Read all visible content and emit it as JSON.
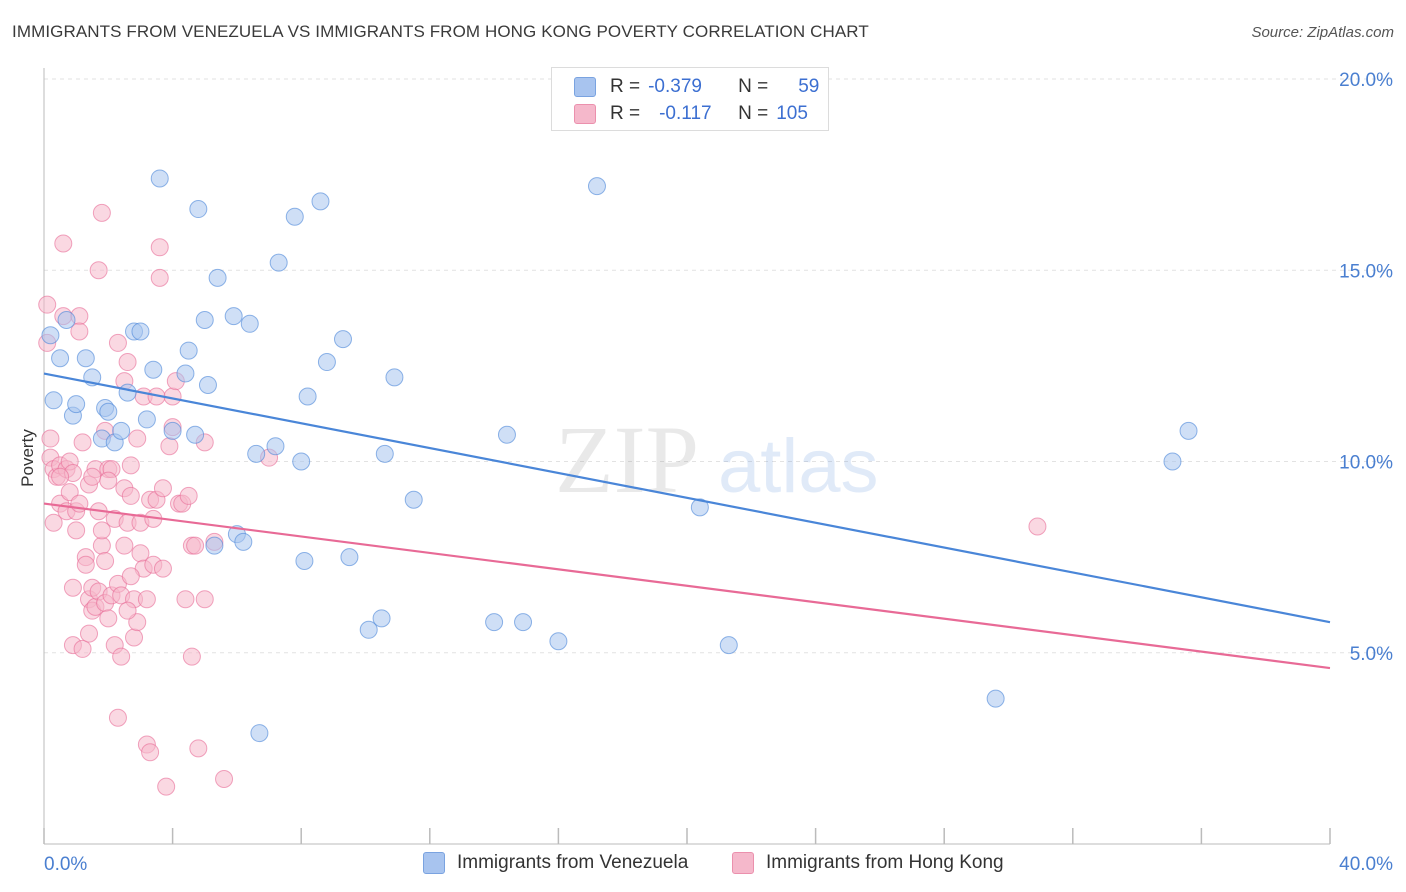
{
  "title": "IMMIGRANTS FROM VENEZUELA VS IMMIGRANTS FROM HONG KONG POVERTY CORRELATION CHART",
  "source": "Source: ZipAtlas.com",
  "watermark": {
    "zip": "ZIP",
    "atlas": "atlas"
  },
  "legend": {
    "rows": [
      {
        "r_label": "R =",
        "r_value": "-0.379",
        "n_label": "N =",
        "n_value": "59",
        "color": "#a8c4ef"
      },
      {
        "r_label": "R =",
        "r_value": "-0.117",
        "n_label": "N =",
        "n_value": "105",
        "color": "#f5b8cb"
      }
    ]
  },
  "bottom_legend": {
    "items": [
      {
        "label": "Immigrants from Venezuela",
        "color": "#a8c4ef"
      },
      {
        "label": "Immigrants from Hong Kong",
        "color": "#f5b8cb"
      }
    ]
  },
  "chart_data": {
    "type": "scatter",
    "title": "IMMIGRANTS FROM VENEZUELA VS IMMIGRANTS FROM HONG KONG POVERTY CORRELATION CHART",
    "xlabel": "",
    "ylabel": "Poverty",
    "xlim": [
      0,
      40
    ],
    "ylim": [
      0,
      20
    ],
    "x_tick_labels": [
      "0.0%",
      "40.0%"
    ],
    "y_ticks": [
      5,
      10,
      15,
      20
    ],
    "y_tick_labels": [
      "5.0%",
      "10.0%",
      "15.0%",
      "20.0%"
    ],
    "grid": true,
    "legend_position": "top-center",
    "series": [
      {
        "name": "Immigrants from Venezuela",
        "color": "#4a86d8",
        "fill": "#a8c4ef",
        "trend": {
          "x": [
            0,
            40
          ],
          "y": [
            12.3,
            5.8
          ]
        },
        "points": [
          [
            0.2,
            13.3
          ],
          [
            0.3,
            11.6
          ],
          [
            0.5,
            12.7
          ],
          [
            0.7,
            13.7
          ],
          [
            0.9,
            11.2
          ],
          [
            1.0,
            11.5
          ],
          [
            1.3,
            12.7
          ],
          [
            1.5,
            12.2
          ],
          [
            1.8,
            10.6
          ],
          [
            1.9,
            11.4
          ],
          [
            2.0,
            11.3
          ],
          [
            2.2,
            10.5
          ],
          [
            2.4,
            10.8
          ],
          [
            2.6,
            11.8
          ],
          [
            2.8,
            13.4
          ],
          [
            3.0,
            13.4
          ],
          [
            3.2,
            11.1
          ],
          [
            3.4,
            12.4
          ],
          [
            3.6,
            17.4
          ],
          [
            4.0,
            10.8
          ],
          [
            4.4,
            12.3
          ],
          [
            4.5,
            12.9
          ],
          [
            4.7,
            10.7
          ],
          [
            4.8,
            16.6
          ],
          [
            5.0,
            13.7
          ],
          [
            5.1,
            12.0
          ],
          [
            5.3,
            7.8
          ],
          [
            5.4,
            14.8
          ],
          [
            5.9,
            13.8
          ],
          [
            6.0,
            8.1
          ],
          [
            6.2,
            7.9
          ],
          [
            6.4,
            13.6
          ],
          [
            6.6,
            10.2
          ],
          [
            6.7,
            2.9
          ],
          [
            7.2,
            10.4
          ],
          [
            7.3,
            15.2
          ],
          [
            7.8,
            16.4
          ],
          [
            8.0,
            10.0
          ],
          [
            8.1,
            7.4
          ],
          [
            8.2,
            11.7
          ],
          [
            8.6,
            16.8
          ],
          [
            8.8,
            12.6
          ],
          [
            9.3,
            13.2
          ],
          [
            9.5,
            7.5
          ],
          [
            10.1,
            5.6
          ],
          [
            10.5,
            5.9
          ],
          [
            10.6,
            10.2
          ],
          [
            10.9,
            12.2
          ],
          [
            11.5,
            9.0
          ],
          [
            14.0,
            5.8
          ],
          [
            14.4,
            10.7
          ],
          [
            14.9,
            5.8
          ],
          [
            16.0,
            5.3
          ],
          [
            17.2,
            17.2
          ],
          [
            20.4,
            8.8
          ],
          [
            21.3,
            5.2
          ],
          [
            29.6,
            3.8
          ],
          [
            35.1,
            10.0
          ],
          [
            35.6,
            10.8
          ]
        ]
      },
      {
        "name": "Immigrants from Hong Kong",
        "color": "#e86a96",
        "fill": "#f5b8cb",
        "trend": {
          "x": [
            0,
            40
          ],
          "y": [
            8.9,
            4.6
          ]
        },
        "points": [
          [
            0.1,
            14.1
          ],
          [
            0.1,
            13.1
          ],
          [
            0.2,
            10.6
          ],
          [
            0.2,
            10.1
          ],
          [
            0.3,
            9.8
          ],
          [
            0.3,
            8.4
          ],
          [
            0.4,
            9.6
          ],
          [
            0.5,
            9.9
          ],
          [
            0.5,
            8.9
          ],
          [
            0.6,
            15.7
          ],
          [
            0.6,
            13.8
          ],
          [
            0.7,
            9.8
          ],
          [
            0.7,
            8.7
          ],
          [
            0.8,
            10.0
          ],
          [
            0.8,
            9.2
          ],
          [
            0.9,
            9.7
          ],
          [
            0.9,
            6.7
          ],
          [
            0.9,
            5.2
          ],
          [
            1.0,
            8.7
          ],
          [
            1.0,
            8.2
          ],
          [
            1.1,
            13.8
          ],
          [
            1.1,
            13.4
          ],
          [
            1.2,
            10.5
          ],
          [
            1.2,
            5.1
          ],
          [
            1.3,
            7.5
          ],
          [
            1.3,
            7.3
          ],
          [
            1.4,
            6.4
          ],
          [
            1.4,
            9.4
          ],
          [
            1.5,
            6.7
          ],
          [
            1.5,
            6.1
          ],
          [
            1.6,
            6.2
          ],
          [
            1.6,
            9.8
          ],
          [
            1.7,
            15.0
          ],
          [
            1.7,
            8.7
          ],
          [
            1.7,
            6.6
          ],
          [
            1.8,
            16.5
          ],
          [
            1.8,
            7.8
          ],
          [
            1.8,
            8.2
          ],
          [
            1.9,
            6.3
          ],
          [
            1.9,
            10.8
          ],
          [
            2.0,
            9.8
          ],
          [
            2.0,
            5.9
          ],
          [
            2.1,
            6.5
          ],
          [
            2.1,
            9.8
          ],
          [
            2.2,
            5.2
          ],
          [
            2.2,
            8.5
          ],
          [
            2.3,
            3.3
          ],
          [
            2.3,
            13.1
          ],
          [
            2.3,
            6.8
          ],
          [
            2.4,
            6.5
          ],
          [
            2.4,
            4.9
          ],
          [
            2.5,
            9.3
          ],
          [
            2.5,
            12.1
          ],
          [
            2.5,
            7.8
          ],
          [
            2.6,
            8.4
          ],
          [
            2.6,
            12.6
          ],
          [
            2.7,
            9.9
          ],
          [
            2.7,
            9.1
          ],
          [
            2.8,
            6.4
          ],
          [
            2.8,
            5.4
          ],
          [
            2.9,
            10.6
          ],
          [
            2.9,
            5.8
          ],
          [
            3.0,
            7.6
          ],
          [
            3.0,
            8.4
          ],
          [
            3.1,
            11.7
          ],
          [
            3.1,
            7.2
          ],
          [
            3.2,
            6.4
          ],
          [
            3.2,
            2.6
          ],
          [
            3.3,
            9.0
          ],
          [
            3.3,
            2.4
          ],
          [
            3.4,
            7.3
          ],
          [
            3.5,
            9.0
          ],
          [
            3.5,
            11.7
          ],
          [
            3.6,
            15.6
          ],
          [
            3.6,
            14.8
          ],
          [
            3.7,
            9.3
          ],
          [
            3.7,
            7.2
          ],
          [
            3.8,
            1.5
          ],
          [
            3.9,
            10.4
          ],
          [
            4.0,
            11.7
          ],
          [
            4.0,
            10.9
          ],
          [
            4.1,
            12.1
          ],
          [
            4.2,
            8.9
          ],
          [
            4.3,
            8.9
          ],
          [
            4.4,
            6.4
          ],
          [
            4.5,
            9.1
          ],
          [
            4.6,
            7.8
          ],
          [
            4.6,
            4.9
          ],
          [
            4.7,
            7.8
          ],
          [
            4.8,
            2.5
          ],
          [
            5.0,
            10.5
          ],
          [
            5.0,
            6.4
          ],
          [
            5.3,
            7.9
          ],
          [
            5.6,
            1.7
          ],
          [
            7.0,
            10.1
          ],
          [
            30.9,
            8.3
          ],
          [
            1.5,
            9.6
          ],
          [
            2.6,
            6.1
          ],
          [
            0.5,
            9.6
          ],
          [
            1.1,
            8.9
          ],
          [
            2.0,
            9.5
          ],
          [
            3.4,
            8.5
          ],
          [
            1.9,
            7.4
          ],
          [
            2.7,
            7.0
          ],
          [
            1.4,
            5.5
          ]
        ]
      }
    ]
  }
}
